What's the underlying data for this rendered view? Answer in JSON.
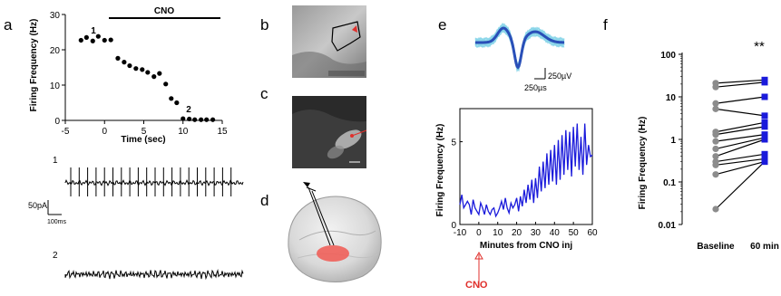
{
  "panel_letters": {
    "a": "a",
    "b": "b",
    "c": "c",
    "d": "d",
    "e": "e",
    "f": "f"
  },
  "scale_bars": {
    "a_current": "50pA",
    "a_time": "100ms",
    "e_voltage": "250µV",
    "e_time": "250µs"
  },
  "trace_labels": {
    "trace1": "1",
    "trace2": "2"
  },
  "cno_arrow_label": "CNO",
  "colors": {
    "blue": "#1a1adb",
    "cyan": "#88d4e8",
    "red": "#e0302c",
    "black": "#000000"
  },
  "chart_data": [
    {
      "type": "scatter",
      "panel": "a",
      "ylabel": "Firing Frequency (Hz)",
      "xlabel": "Time (sec)",
      "xlim": [
        -5,
        15
      ],
      "ylim": [
        0,
        30
      ],
      "xticks": [
        "-5",
        "0",
        "5",
        "10",
        "15"
      ],
      "yticks": [
        "0",
        "10",
        "20",
        "30"
      ],
      "annotations": {
        "bar_label": "CNO",
        "bar_range": [
          0,
          15
        ],
        "point1": "1",
        "point2": "2"
      },
      "x": [
        -3,
        -2.3,
        -1.5,
        -0.8,
        0,
        0.8,
        1.7,
        2.5,
        3.2,
        4,
        4.8,
        5.5,
        6.3,
        7,
        7.8,
        8.5,
        9.2,
        10,
        10.8,
        11.5,
        12.3,
        13,
        13.8
      ],
      "y": [
        22.7,
        23.5,
        22.5,
        23.8,
        22.7,
        22.8,
        17.6,
        16.5,
        15.5,
        14.7,
        14.4,
        13.6,
        12.4,
        13.3,
        10.3,
        6.2,
        5.0,
        0.5,
        0.4,
        0.2,
        0.2,
        0.2,
        0.2
      ]
    },
    {
      "type": "line",
      "panel": "e",
      "ylabel": "Firing Frequency (Hz)",
      "xlabel": "Minutes from CNO inj",
      "xlim": [
        -10,
        60
      ],
      "ylim": [
        0,
        7
      ],
      "xticks": [
        "-10",
        "0",
        "10",
        "20",
        "30",
        "40",
        "50",
        "60"
      ],
      "yticks": [
        "0",
        "5"
      ],
      "x": [
        -10,
        -9,
        -8,
        -7,
        -6,
        -5,
        -4,
        -3,
        -2,
        -1,
        0,
        1,
        2,
        3,
        4,
        5,
        6,
        7,
        8,
        9,
        10,
        11,
        12,
        13,
        14,
        15,
        16,
        17,
        18,
        19,
        20,
        21,
        22,
        23,
        24,
        25,
        26,
        27,
        28,
        29,
        30,
        31,
        32,
        33,
        34,
        35,
        36,
        37,
        38,
        39,
        40,
        41,
        42,
        43,
        44,
        45,
        46,
        47,
        48,
        49,
        50,
        51,
        52,
        53,
        54,
        55,
        56,
        57,
        58,
        59,
        60
      ],
      "y": [
        1.2,
        1.8,
        1.0,
        1.2,
        1.4,
        1.2,
        0.6,
        1.5,
        1.0,
        0.8,
        0.6,
        1.3,
        1.0,
        0.6,
        1.2,
        0.8,
        0.6,
        0.9,
        1.0,
        0.5,
        0.7,
        1.0,
        1.4,
        0.9,
        1.6,
        1.0,
        0.7,
        1.3,
        1.0,
        1.2,
        1.6,
        0.8,
        1.7,
        1.1,
        2.1,
        1.3,
        2.4,
        1.5,
        2.7,
        1.3,
        2.8,
        1.6,
        3.5,
        2.0,
        3.8,
        2.2,
        4.3,
        2.4,
        4.5,
        2.6,
        4.8,
        2.4,
        5.1,
        2.7,
        5.4,
        3.0,
        5.7,
        3.3,
        5.6,
        2.9,
        5.9,
        3.5,
        6.1,
        3.3,
        5.3,
        3.0,
        6.1,
        3.6,
        4.8,
        4.1,
        4.2
      ]
    },
    {
      "type": "scatter",
      "panel": "f",
      "ylabel": "Firing Frequency (Hz)",
      "categories": [
        "Baseline",
        "60 min"
      ],
      "scale": "log",
      "ylim": [
        0.01,
        100
      ],
      "yticks": [
        "0.01",
        "0.1",
        "1",
        "10",
        "100"
      ],
      "annotation": "**",
      "pairs": [
        [
          0.023,
          0.3
        ],
        [
          0.15,
          0.3
        ],
        [
          0.25,
          0.35
        ],
        [
          0.3,
          0.45
        ],
        [
          0.4,
          1.0
        ],
        [
          0.6,
          1.1
        ],
        [
          0.9,
          1.3
        ],
        [
          1.3,
          2.0
        ],
        [
          1.5,
          2.5
        ],
        [
          5.2,
          3.6
        ],
        [
          7.0,
          10.0
        ],
        [
          17.0,
          22.0
        ],
        [
          21.0,
          25.0
        ]
      ]
    }
  ]
}
